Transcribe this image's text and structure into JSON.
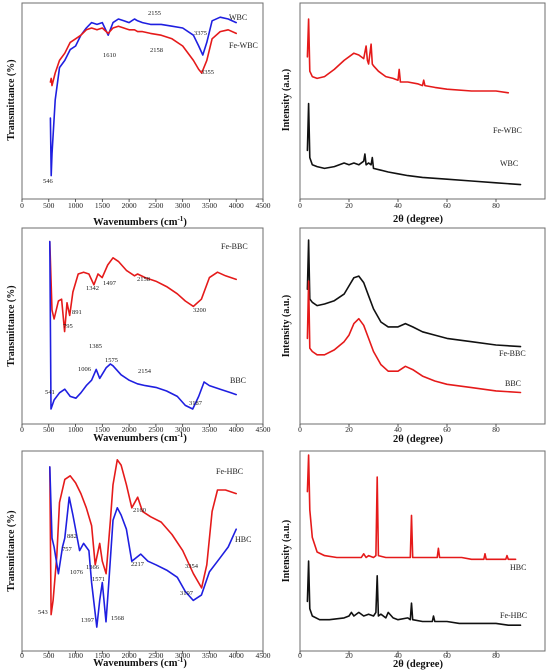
{
  "chart_data": [
    {
      "type": "line",
      "panel": "ftir-wbc",
      "xlabel": "Wavenumbers (cm⁻¹)",
      "ylabel": "Transmittance (%)",
      "xlim": [
        0,
        4500
      ],
      "ylim": [
        0,
        100
      ],
      "xticks": [
        "0",
        "500",
        "1000",
        "1500",
        "2000",
        "2500",
        "3000",
        "3500",
        "4000",
        "4500"
      ],
      "series": [
        {
          "name": "WBC",
          "color": "#1f1fe0",
          "x": [
            530,
            546,
            560,
            620,
            700,
            800,
            900,
            1000,
            1100,
            1200,
            1300,
            1400,
            1500,
            1610,
            1700,
            1800,
            1900,
            2000,
            2100,
            2158,
            2250,
            2400,
            2600,
            2800,
            3000,
            3200,
            3300,
            3375,
            3450,
            3550,
            3700,
            3850,
            4000
          ],
          "y": [
            40,
            8,
            20,
            50,
            68,
            72,
            78,
            80,
            86,
            90,
            93,
            92,
            93,
            86,
            93,
            95,
            94,
            93,
            95,
            94,
            93,
            92,
            92,
            91,
            90,
            86,
            80,
            75,
            82,
            94,
            96,
            95,
            93
          ]
        },
        {
          "name": "Fe-WBC",
          "color": "#e51a1a",
          "x": [
            530,
            546,
            560,
            620,
            700,
            800,
            900,
            1000,
            1100,
            1200,
            1300,
            1400,
            1500,
            1610,
            1700,
            1800,
            1900,
            2000,
            2100,
            2158,
            2250,
            2400,
            2600,
            2800,
            3000,
            3200,
            3300,
            3355,
            3450,
            3550,
            3700,
            3850,
            4000
          ],
          "y": [
            60,
            62,
            58,
            65,
            72,
            76,
            82,
            84,
            86,
            89,
            90,
            89,
            90,
            87,
            90,
            91,
            90,
            89,
            89,
            88,
            88,
            87,
            86,
            84,
            80,
            72,
            67,
            65,
            72,
            84,
            88,
            89,
            87
          ]
        }
      ],
      "annotations": [
        "546",
        "1610",
        "2155",
        "2158",
        "3375",
        "3355"
      ]
    },
    {
      "type": "line",
      "panel": "xrd-wbc",
      "xlabel": "2θ (degree)",
      "ylabel": "Intensity (a.u.)",
      "xlim": [
        0,
        100
      ],
      "xticks": [
        "0",
        "20",
        "40",
        "60",
        "80"
      ],
      "series": [
        {
          "name": "Fe-WBC",
          "color": "#e51a1a",
          "x": [
            3.0,
            3.5,
            4.0,
            5,
            7,
            10,
            14,
            18,
            22,
            24,
            26,
            27,
            27.5,
            28,
            29,
            29.5,
            30,
            32,
            35,
            38,
            40,
            40.5,
            41,
            44,
            48,
            50,
            50.5,
            51,
            55,
            60,
            70,
            80,
            85
          ],
          "y": [
            74,
            95,
            66,
            63,
            62,
            63,
            67,
            72,
            76,
            75,
            73,
            80,
            72,
            70,
            81,
            70,
            69,
            66,
            63,
            62,
            61,
            67,
            60,
            60,
            59,
            58,
            61,
            58,
            57,
            56,
            55,
            55,
            54
          ]
        },
        {
          "name": "WBC",
          "color": "#111111",
          "x": [
            3.0,
            3.5,
            4.0,
            5,
            7,
            10,
            14,
            18,
            20,
            22,
            24,
            26,
            26.5,
            27,
            28,
            29,
            29.5,
            30,
            33,
            36,
            40,
            44,
            50,
            60,
            70,
            80,
            90
          ],
          "y": [
            22,
            48,
            18,
            14,
            13,
            12,
            13,
            15,
            14,
            15,
            14,
            16,
            20,
            14,
            15,
            14,
            18,
            12,
            11,
            10,
            9,
            8,
            7,
            6,
            5,
            4,
            3
          ]
        }
      ]
    },
    {
      "type": "line",
      "panel": "ftir-bbc",
      "xlabel": "Wavenumbers (cm⁻¹)",
      "ylabel": "Transmittance (%)",
      "xlim": [
        0,
        4500
      ],
      "ylim": [
        0,
        100
      ],
      "xticks": [
        "0",
        "500",
        "1000",
        "1500",
        "2000",
        "2500",
        "3000",
        "3500",
        "4000",
        "4500"
      ],
      "series": [
        {
          "name": "Fe-BBC",
          "color": "#e51a1a",
          "x": [
            520,
            560,
            600,
            680,
            740,
            795,
            840,
            891,
            950,
            1050,
            1150,
            1250,
            1342,
            1420,
            1497,
            1600,
            1700,
            1800,
            1950,
            2100,
            2158,
            2300,
            2500,
            2700,
            2900,
            3050,
            3200,
            3350,
            3500,
            3650,
            3800,
            4000
          ],
          "y": [
            98,
            60,
            55,
            65,
            66,
            48,
            64,
            57,
            70,
            80,
            81,
            80,
            74,
            80,
            78,
            85,
            89,
            87,
            82,
            79,
            80,
            78,
            76,
            73,
            69,
            65,
            62,
            66,
            78,
            81,
            79,
            77
          ]
        },
        {
          "name": "BBC",
          "color": "#1f1fe0",
          "x": [
            520,
            541,
            600,
            700,
            800,
            900,
            1006,
            1100,
            1200,
            1300,
            1385,
            1450,
            1575,
            1650,
            1700,
            1850,
            2000,
            2154,
            2300,
            2500,
            2700,
            2900,
            3050,
            3187,
            3300,
            3400,
            3500,
            3700,
            3900,
            4000
          ],
          "y": [
            98,
            5,
            10,
            14,
            16,
            12,
            11,
            14,
            18,
            21,
            27,
            22,
            28,
            30,
            29,
            24,
            21,
            19,
            18,
            17,
            15,
            12,
            7,
            5,
            12,
            20,
            18,
            16,
            14,
            13
          ]
        }
      ],
      "annotations": [
        "541",
        "795",
        "891",
        "1006",
        "1342",
        "1385",
        "1497",
        "1575",
        "2154",
        "2158",
        "3187",
        "3200"
      ]
    },
    {
      "type": "line",
      "panel": "xrd-bbc",
      "xlabel": "2θ (degree)",
      "ylabel": "Intensity (a.u.)",
      "xlim": [
        0,
        100
      ],
      "xticks": [
        "0",
        "20",
        "40",
        "60",
        "80"
      ],
      "series": [
        {
          "name": "Fe-BBC",
          "color": "#111111",
          "x": [
            3.0,
            3.5,
            4.0,
            5,
            7,
            10,
            14,
            18,
            20,
            22,
            24,
            26,
            28,
            30,
            33,
            36,
            40,
            43,
            46,
            50,
            55,
            60,
            70,
            80,
            90
          ],
          "y": [
            70,
            100,
            64,
            62,
            60,
            61,
            63,
            67,
            72,
            77,
            78,
            74,
            66,
            58,
            50,
            47,
            47,
            49,
            47,
            44,
            42,
            40,
            38,
            36,
            35
          ]
        },
        {
          "name": "BBC",
          "color": "#e51a1a",
          "x": [
            3.0,
            3.5,
            4.0,
            5,
            7,
            10,
            14,
            18,
            20,
            22,
            24,
            26,
            28,
            30,
            33,
            36,
            40,
            43,
            46,
            50,
            55,
            60,
            70,
            80,
            90
          ],
          "y": [
            40,
            75,
            34,
            32,
            30,
            30,
            33,
            38,
            42,
            49,
            52,
            48,
            40,
            32,
            24,
            20,
            20,
            23,
            21,
            17,
            14,
            12,
            10,
            8,
            7
          ]
        }
      ]
    },
    {
      "type": "line",
      "panel": "ftir-hbc",
      "xlabel": "Wavenumbers (cm⁻¹)",
      "ylabel": "Transmittance (%)",
      "xlim": [
        0,
        4500
      ],
      "ylim": [
        0,
        100
      ],
      "xticks": [
        "0",
        "500",
        "1000",
        "1500",
        "2000",
        "2500",
        "3000",
        "3500",
        "4000",
        "4500"
      ],
      "series": [
        {
          "name": "Fe-HBC",
          "color": "#e51a1a",
          "x": [
            520,
            543,
            580,
            650,
            700,
            800,
            900,
            1000,
            1100,
            1200,
            1300,
            1366,
            1450,
            1500,
            1571,
            1650,
            1700,
            1780,
            1850,
            1950,
            2050,
            2160,
            2250,
            2400,
            2600,
            2800,
            3000,
            3200,
            3354,
            3450,
            3550,
            3650,
            3800,
            4000
          ],
          "y": [
            95,
            12,
            20,
            45,
            75,
            88,
            90,
            86,
            80,
            72,
            62,
            40,
            52,
            42,
            35,
            65,
            85,
            99,
            96,
            85,
            72,
            78,
            70,
            67,
            64,
            57,
            48,
            35,
            27,
            40,
            70,
            82,
            82,
            80
          ]
        },
        {
          "name": "HBC",
          "color": "#1f1fe0",
          "x": [
            520,
            560,
            600,
            680,
            757,
            800,
            882,
            950,
            1076,
            1150,
            1250,
            1300,
            1397,
            1450,
            1500,
            1568,
            1620,
            1700,
            1780,
            1850,
            1950,
            2050,
            2217,
            2350,
            2500,
            2700,
            2900,
            3050,
            3197,
            3350,
            3500,
            3700,
            3850,
            4000
          ],
          "y": [
            95,
            55,
            50,
            35,
            50,
            55,
            78,
            68,
            48,
            52,
            48,
            30,
            5,
            20,
            30,
            8,
            30,
            65,
            72,
            68,
            60,
            42,
            46,
            42,
            40,
            37,
            33,
            25,
            20,
            23,
            36,
            44,
            50,
            60
          ]
        }
      ],
      "annotations": [
        "543",
        "757",
        "882",
        "1076",
        "1366",
        "1397",
        "1568",
        "1571",
        "2160",
        "2217",
        "3197",
        "3354"
      ]
    },
    {
      "type": "line",
      "panel": "xrd-hbc",
      "xlabel": "2θ (degree)",
      "ylabel": "Intensity (a.u.)",
      "xlim": [
        0,
        100
      ],
      "xticks": [
        "0",
        "20",
        "40",
        "60",
        "80"
      ],
      "series": [
        {
          "name": "HBC",
          "color": "#e51a1a",
          "x": [
            3.0,
            3.5,
            4.0,
            5,
            7,
            10,
            15,
            20,
            25,
            26,
            27,
            28,
            30,
            31,
            31.5,
            32,
            35,
            40,
            45,
            45.5,
            46,
            50,
            56,
            56.5,
            57,
            60,
            66,
            70,
            75,
            75.5,
            76,
            80,
            84,
            84.5,
            85,
            88
          ],
          "y": [
            80,
            100,
            70,
            55,
            47,
            45,
            44,
            44,
            44,
            46,
            44,
            45,
            44,
            45,
            88,
            45,
            44,
            44,
            44,
            67,
            44,
            44,
            44,
            49,
            44,
            44,
            44,
            43,
            43,
            46,
            43,
            43,
            43,
            45,
            43,
            43
          ]
        },
        {
          "name": "Fe-HBC",
          "color": "#111111",
          "x": [
            3.0,
            3.5,
            4.0,
            5,
            8,
            12,
            18,
            20,
            21,
            22,
            24,
            26,
            28,
            30,
            31,
            31.5,
            32,
            33,
            35,
            36,
            38,
            40,
            44,
            45,
            45.5,
            46,
            50,
            54,
            54.5,
            55,
            60,
            65,
            70,
            75,
            80,
            85,
            90
          ],
          "y": [
            20,
            42,
            16,
            12,
            10,
            10,
            11,
            12,
            14,
            12,
            14,
            12,
            13,
            12,
            14,
            34,
            12,
            13,
            11,
            14,
            11,
            10,
            11,
            10,
            19,
            10,
            9,
            9,
            12,
            9,
            9,
            8,
            8,
            8,
            8,
            7,
            7
          ]
        }
      ]
    }
  ],
  "wbc": {
    "ftir_label_top": "WBC",
    "ftir_label_bottom": "Fe-WBC",
    "peaks": {
      "p546": "546",
      "p1610": "1610",
      "p2155": "2155",
      "p2158": "2158",
      "p3375": "3375",
      "p3355": "3355"
    },
    "xrd_label_top": "Fe-WBC",
    "xrd_label_bottom": "WBC"
  },
  "bbc": {
    "ftir_label_top": "Fe-BBC",
    "ftir_label_bottom": "BBC",
    "peaks": {
      "p541": "541",
      "p795": "795",
      "p891": "891",
      "p1006": "1006",
      "p1342": "1342",
      "p1385": "1385",
      "p1497": "1497",
      "p1575": "1575",
      "p2154": "2154",
      "p2158": "2158",
      "p3187": "3187",
      "p3200": "3200"
    },
    "xrd_label_top": "Fe-BBC",
    "xrd_label_bottom": "BBC"
  },
  "hbc": {
    "ftir_label_top": "Fe-HBC",
    "ftir_label_bottom": "HBC",
    "peaks": {
      "p543": "543",
      "p757": "757",
      "p882": "882",
      "p1076": "1076",
      "p1366": "1366",
      "p1397": "1397",
      "p1568": "1568",
      "p1571": "1571",
      "p2160": "2160",
      "p2217": "2217",
      "p3197": "3197",
      "p3354": "3354"
    },
    "xrd_label_top": "HBC",
    "xrd_label_bottom": "Fe-HBC"
  },
  "labels": {
    "ftir_ylabel": "Transmittance (%)",
    "ftir_xlabel_main": "Wavenumbers (cm",
    "ftir_xlabel_sup": "-1",
    "ftir_xlabel_close": ")",
    "xrd_ylabel": "Intensity (a.u.)",
    "xrd_xlabel": "2θ (degree)"
  }
}
